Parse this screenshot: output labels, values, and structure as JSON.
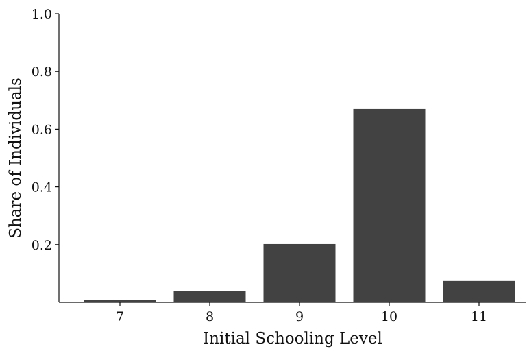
{
  "chart_data": {
    "type": "bar",
    "categories": [
      "7",
      "8",
      "9",
      "10",
      "11"
    ],
    "values": [
      0.008,
      0.04,
      0.202,
      0.67,
      0.074
    ],
    "title": "",
    "xlabel": "Initial Schooling Level",
    "ylabel": "Share of Individuals",
    "ylim": [
      0,
      1.0
    ],
    "yticks": [
      "0.2",
      "0.4",
      "0.6",
      "0.8",
      "1.0"
    ],
    "ytick_values": [
      0.2,
      0.4,
      0.6,
      0.8,
      1.0
    ],
    "grid": false,
    "legend": "none",
    "bar_color": "#424242"
  }
}
